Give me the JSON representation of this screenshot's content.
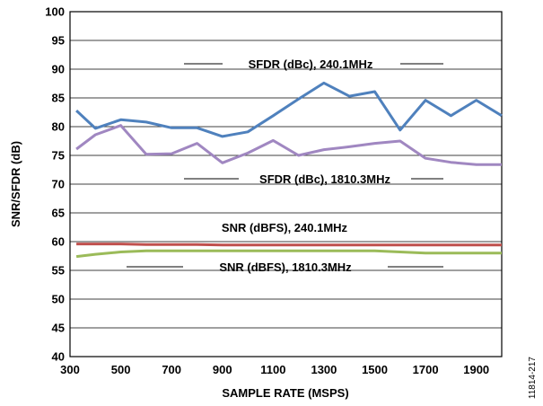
{
  "chart_data": {
    "type": "line",
    "xlabel": "SAMPLE RATE (MSPS)",
    "ylabel": "SNR/SFDR (dB)",
    "xlim": [
      300,
      2000
    ],
    "ylim": [
      40,
      100
    ],
    "x_ticks": [
      300,
      500,
      700,
      900,
      1100,
      1300,
      1500,
      1700,
      1900
    ],
    "y_ticks": [
      40,
      45,
      50,
      55,
      60,
      65,
      70,
      75,
      80,
      85,
      90,
      95,
      100
    ],
    "grid": "horizontal",
    "series": [
      {
        "name": "SFDR (dBc), 240.1MHz",
        "color": "#4f81bd",
        "x": [
          325,
          400,
          500,
          600,
          700,
          800,
          900,
          1000,
          1100,
          1200,
          1300,
          1400,
          1500,
          1600,
          1700,
          1800,
          1900,
          2000
        ],
        "y": [
          82.8,
          79.7,
          81.2,
          80.8,
          79.8,
          79.8,
          78.3,
          79.1,
          81.9,
          84.8,
          87.6,
          85.3,
          86.1,
          79.4,
          84.6,
          81.9,
          84.6,
          81.9
        ]
      },
      {
        "name": "SFDR (dBc), 1810.3MHz",
        "color": "#a087c1",
        "x": [
          325,
          400,
          500,
          600,
          700,
          800,
          900,
          1000,
          1100,
          1200,
          1300,
          1400,
          1500,
          1600,
          1700,
          1800,
          1900,
          2000
        ],
        "y": [
          76.1,
          78.6,
          80.2,
          75.2,
          75.3,
          77.1,
          73.7,
          75.4,
          77.6,
          75.0,
          76.0,
          76.5,
          77.1,
          77.5,
          74.5,
          73.8,
          73.4,
          73.4
        ]
      },
      {
        "name": "SNR (dBFS), 240.1MHz",
        "color": "#c0504d",
        "x": [
          325,
          400,
          500,
          600,
          700,
          800,
          900,
          1000,
          1100,
          1200,
          1300,
          1400,
          1500,
          1600,
          1700,
          1800,
          1900,
          2000
        ],
        "y": [
          59.6,
          59.6,
          59.6,
          59.5,
          59.5,
          59.5,
          59.4,
          59.4,
          59.4,
          59.4,
          59.4,
          59.4,
          59.4,
          59.4,
          59.4,
          59.4,
          59.4,
          59.4
        ]
      },
      {
        "name": "SNR (dBFS), 1810.3MHz",
        "color": "#9bbb59",
        "x": [
          325,
          400,
          500,
          600,
          700,
          800,
          900,
          1000,
          1100,
          1200,
          1300,
          1400,
          1500,
          1600,
          1700,
          1800,
          1900,
          2000
        ],
        "y": [
          57.4,
          57.8,
          58.2,
          58.4,
          58.4,
          58.4,
          58.4,
          58.4,
          58.4,
          58.4,
          58.4,
          58.4,
          58.4,
          58.2,
          58.0,
          58.0,
          58.0,
          58.0
        ]
      }
    ],
    "annotations": [
      "SFDR (dBc), 240.1MHz",
      "SFDR (dBc), 1810.3MHz",
      "SNR (dBFS), 240.1MHz",
      "SNR (dBFS), 1810.3MHz"
    ],
    "figure_id": "11814-217"
  }
}
